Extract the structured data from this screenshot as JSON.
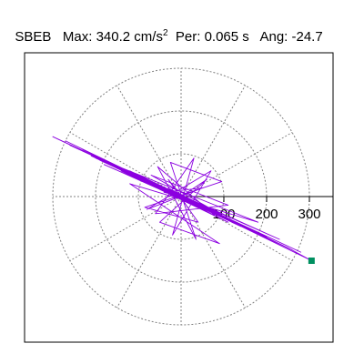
{
  "chart_data": {
    "type": "scatter",
    "title": {
      "station": "SBEB",
      "max_label": "Max:",
      "max_value": "340.2",
      "unit_base": "cm/s",
      "unit_exp": "2",
      "per_label": "Per:",
      "per_value": "0.065 s",
      "ang_label": "Ang:",
      "ang_value": "-24.7"
    },
    "polar_rings": [
      100,
      200,
      300
    ],
    "ring_labels": [
      "100",
      "200",
      "300"
    ],
    "spokes_deg": [
      0,
      30,
      60,
      90,
      120,
      150,
      180,
      210,
      240,
      270,
      300,
      330
    ],
    "axis_range": [
      -340,
      340
    ],
    "peak": {
      "x": 305,
      "y": -150
    },
    "trace_color": "#8B00E0",
    "peak_color": "#009060",
    "series": [
      {
        "type": "orbit",
        "points": [
          [
            0,
            0
          ],
          [
            40,
            -15
          ],
          [
            -30,
            20
          ],
          [
            60,
            -35
          ],
          [
            -60,
            30
          ],
          [
            80,
            -40
          ],
          [
            -100,
            45
          ],
          [
            110,
            -60
          ],
          [
            -140,
            60
          ],
          [
            170,
            -80
          ],
          [
            -200,
            90
          ],
          [
            230,
            -100
          ],
          [
            -260,
            120
          ],
          [
            280,
            -130
          ],
          [
            -300,
            140
          ],
          [
            260,
            -125
          ],
          [
            -230,
            110
          ],
          [
            200,
            -95
          ],
          [
            -180,
            75
          ],
          [
            150,
            -70
          ],
          [
            -120,
            60
          ],
          [
            90,
            -40
          ],
          [
            -70,
            50
          ],
          [
            110,
            -20
          ],
          [
            -60,
            -40
          ],
          [
            30,
            90
          ],
          [
            -20,
            -90
          ],
          [
            70,
            60
          ],
          [
            -80,
            -30
          ],
          [
            50,
            20
          ],
          [
            -40,
            10
          ],
          [
            20,
            -5
          ],
          [
            -10,
            5
          ],
          [
            0,
            0
          ],
          [
            60,
            40
          ],
          [
            -50,
            -60
          ],
          [
            90,
            -110
          ],
          [
            -120,
            30
          ],
          [
            180,
            -60
          ],
          [
            -210,
            95
          ],
          [
            240,
            -115
          ],
          [
            -270,
            130
          ],
          [
            295,
            -145
          ],
          [
            305,
            -150
          ],
          [
            250,
            -120
          ],
          [
            -190,
            85
          ],
          [
            140,
            -70
          ],
          [
            -110,
            50
          ],
          [
            80,
            -45
          ],
          [
            -55,
            70
          ],
          [
            35,
            -100
          ],
          [
            -25,
            80
          ],
          [
            95,
            35
          ],
          [
            -85,
            -25
          ],
          [
            40,
            -60
          ],
          [
            -30,
            40
          ],
          [
            10,
            -10
          ],
          [
            0,
            0
          ]
        ]
      }
    ]
  }
}
